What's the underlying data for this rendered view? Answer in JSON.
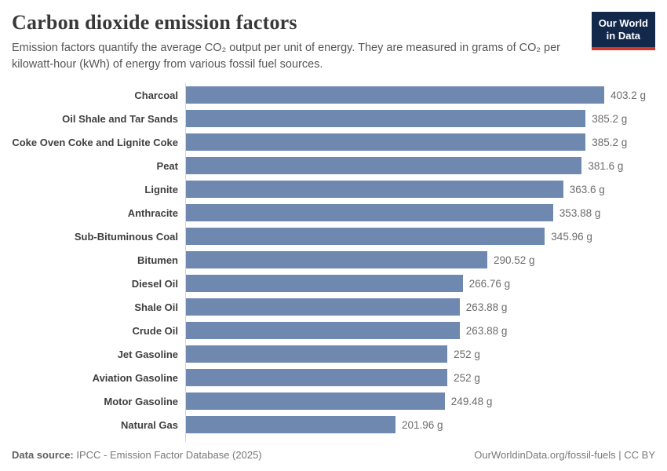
{
  "header": {
    "title": "Carbon dioxide emission factors",
    "subtitle": "Emission factors quantify the average CO₂ output per unit of energy. They are measured in grams of CO₂ per kilowatt-hour (kWh) of energy from various fossil fuel sources.",
    "logo": {
      "line1": "Our World",
      "line2": "in Data"
    }
  },
  "chart_data": {
    "type": "bar",
    "orientation": "horizontal",
    "title": "Carbon dioxide emission factors",
    "unit": "g",
    "xlim": [
      0,
      403.2
    ],
    "grid": false,
    "legend": "none",
    "bar_color": "#6e88b0",
    "categories": [
      "Charcoal",
      "Oil Shale and Tar Sands",
      "Coke Oven Coke and Lignite Coke",
      "Peat",
      "Lignite",
      "Anthracite",
      "Sub-Bituminous Coal",
      "Bitumen",
      "Diesel Oil",
      "Shale Oil",
      "Crude Oil",
      "Jet Gasoline",
      "Aviation Gasoline",
      "Motor Gasoline",
      "Natural Gas"
    ],
    "values": [
      403.2,
      385.2,
      385.2,
      381.6,
      363.6,
      353.88,
      345.96,
      290.52,
      266.76,
      263.88,
      263.88,
      252,
      252,
      249.48,
      201.96
    ],
    "value_labels": [
      "403.2 g",
      "385.2 g",
      "385.2 g",
      "381.6 g",
      "363.6 g",
      "353.88 g",
      "345.96 g",
      "290.52 g",
      "266.76 g",
      "263.88 g",
      "263.88 g",
      "252 g",
      "252 g",
      "249.48 g",
      "201.96 g"
    ]
  },
  "footer": {
    "source_label": "Data source:",
    "source_text": "IPCC - Emission Factor Database (2025)",
    "link_text": "OurWorldinData.org/fossil-fuels | CC BY"
  },
  "colors": {
    "bar": "#6e88b0",
    "logo_bg": "#12294b",
    "logo_accent": "#d7342c",
    "title": "#383838",
    "subtitle": "#565656",
    "entity_label": "#3f3f3f",
    "value_label": "#6c6c6c",
    "axis_line": "#d7d7d7"
  }
}
